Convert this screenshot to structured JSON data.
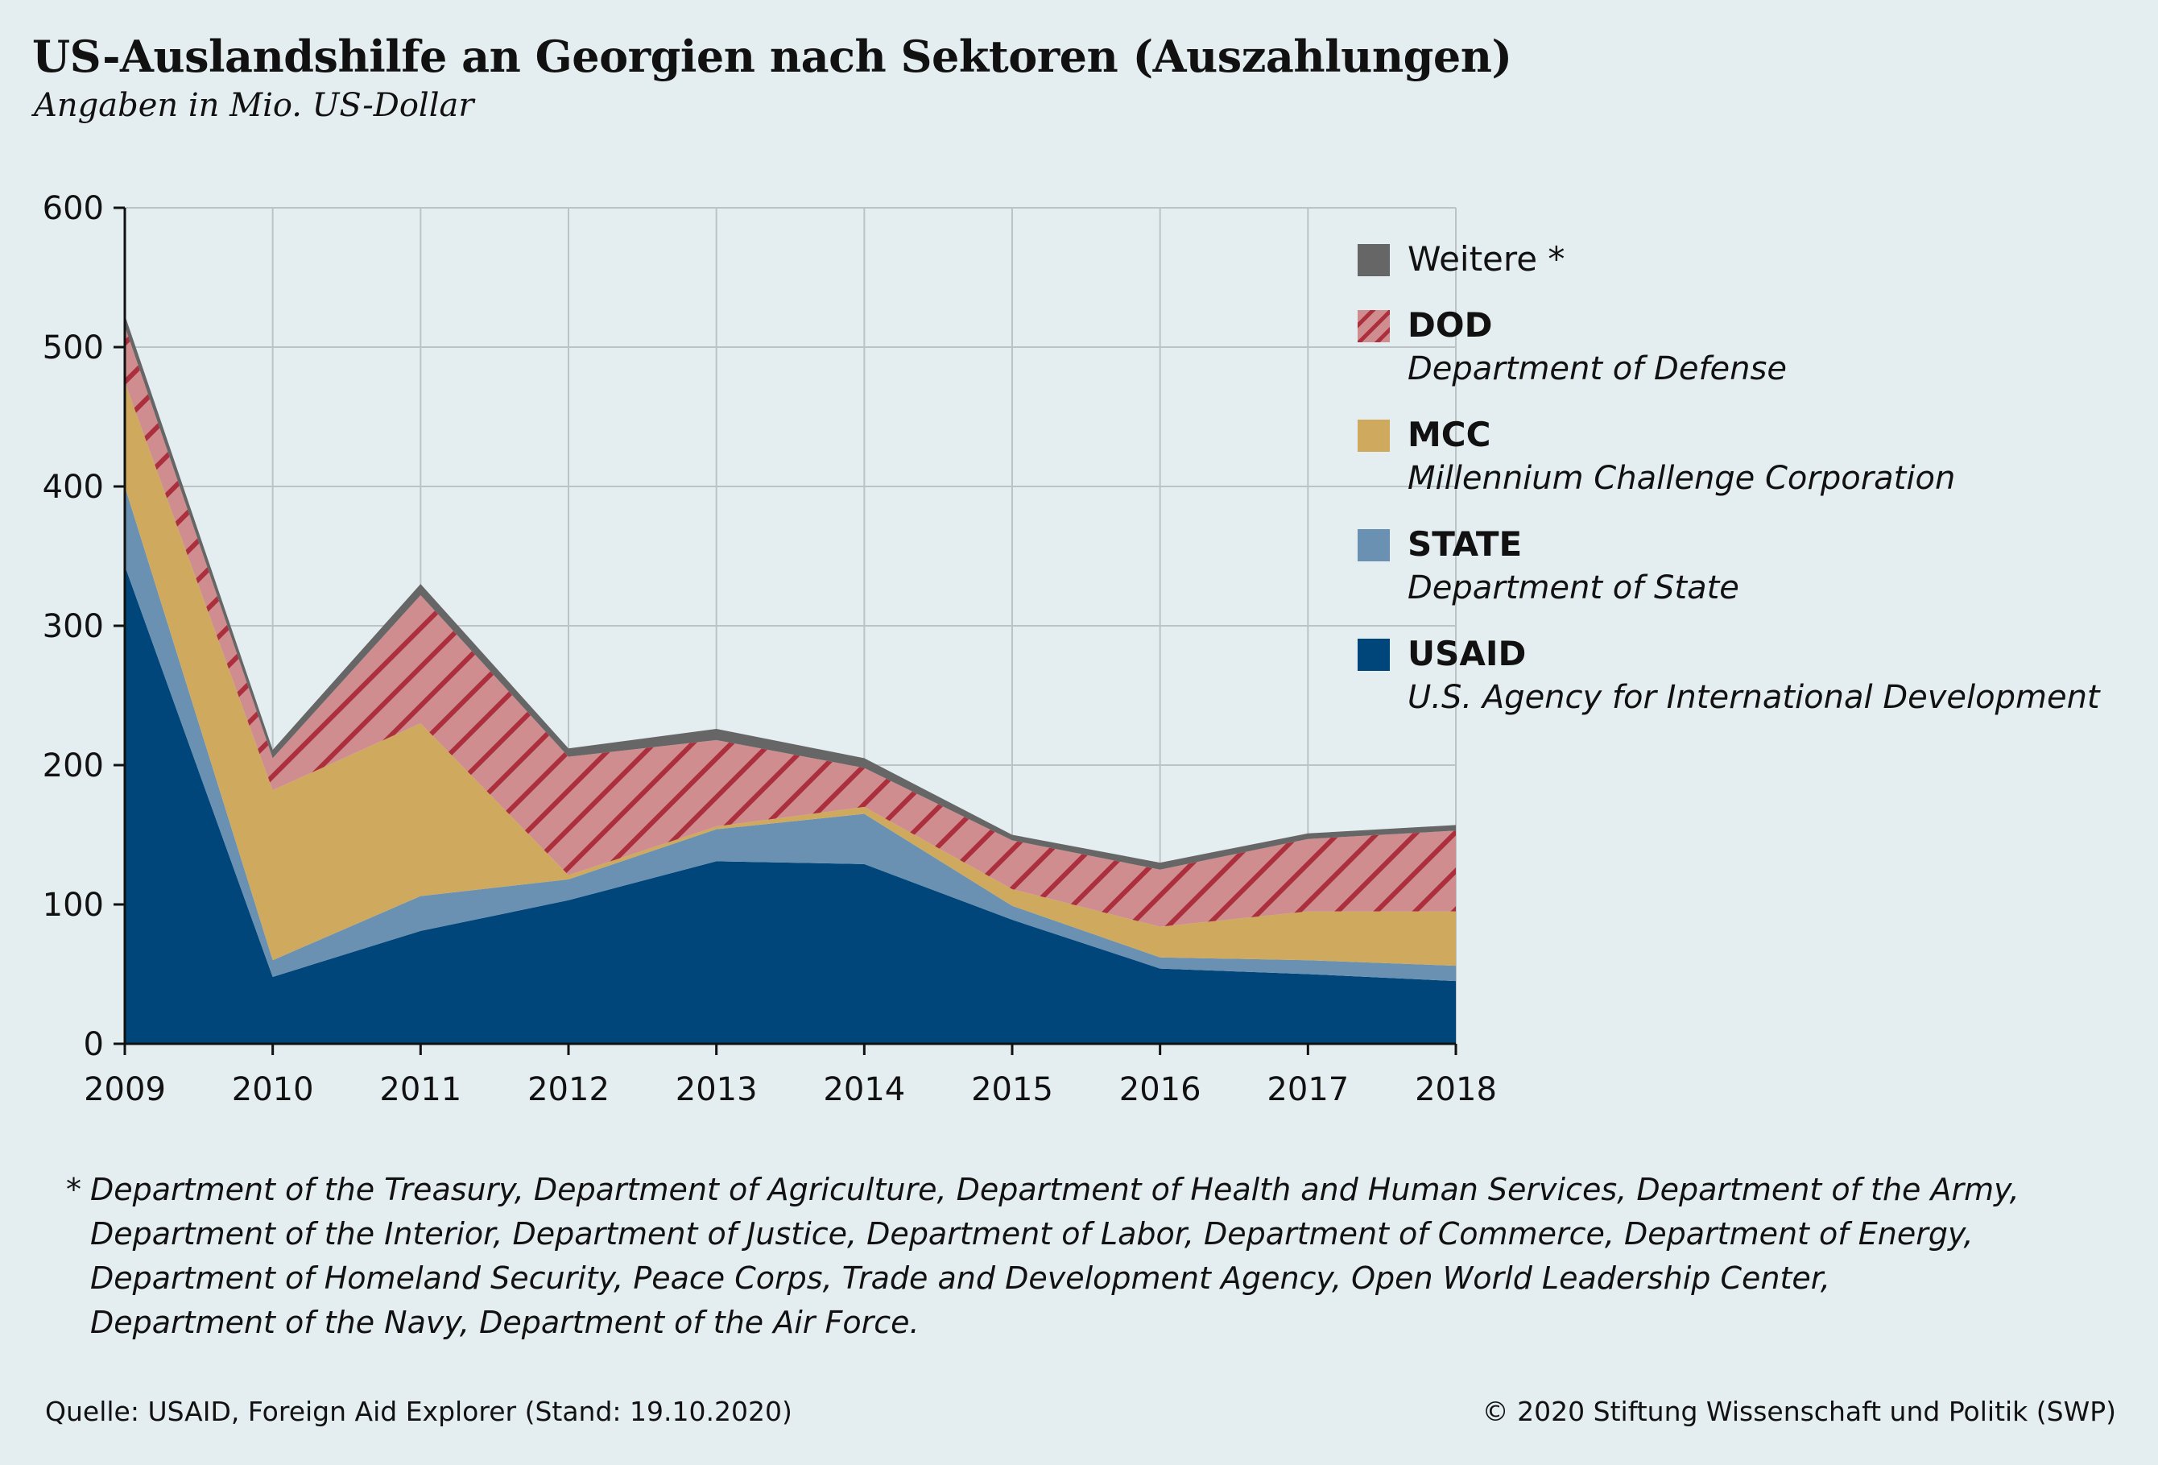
{
  "title": "US-Auslandshilfe an Georgien nach Sektoren (Auszahlungen)",
  "subtitle": "Angaben in Mio. US-Dollar",
  "colors": {
    "usaid": "#00467a",
    "state": "#6b91b2",
    "mcc": "#cfaa5e",
    "dod": "#d08d8f",
    "dod_hatch": "#ab2f3c",
    "weitere": "#666666",
    "grid": "#bcc3c6",
    "background": "#e4edf0"
  },
  "legend": [
    {
      "key": "weitere",
      "name": "Weitere",
      "suffix": " *",
      "bold": false,
      "desc": ""
    },
    {
      "key": "dod",
      "name": "DOD",
      "suffix": "",
      "bold": true,
      "desc": "Department of Defense"
    },
    {
      "key": "mcc",
      "name": "MCC",
      "suffix": "",
      "bold": true,
      "desc": "Millennium Challenge Corporation"
    },
    {
      "key": "state",
      "name": "STATE",
      "suffix": "",
      "bold": true,
      "desc": "Department of State"
    },
    {
      "key": "usaid",
      "name": "USAID",
      "suffix": "",
      "bold": true,
      "desc": "U.S. Agency for International Development"
    }
  ],
  "chart_data": {
    "type": "area",
    "stacked": true,
    "x": [
      2009,
      2010,
      2011,
      2012,
      2013,
      2014,
      2015,
      2016,
      2017,
      2018
    ],
    "ylim": [
      0,
      600
    ],
    "yticks": [
      0,
      100,
      200,
      300,
      400,
      500,
      600
    ],
    "grid": true,
    "legend_position": "right",
    "series": [
      {
        "key": "usaid",
        "name": "USAID",
        "values": [
          343,
          48,
          81,
          103,
          131,
          129,
          89,
          54,
          50,
          45
        ]
      },
      {
        "key": "state",
        "name": "STATE",
        "values": [
          57,
          12,
          25,
          15,
          23,
          36,
          10,
          8,
          10,
          11
        ]
      },
      {
        "key": "mcc",
        "name": "MCC",
        "values": [
          75,
          122,
          124,
          3,
          2,
          5,
          12,
          22,
          35,
          39
        ]
      },
      {
        "key": "dod",
        "name": "DOD",
        "values": [
          40,
          23,
          92,
          85,
          62,
          28,
          35,
          41,
          52,
          58
        ]
      },
      {
        "key": "weitere",
        "name": "Weitere",
        "values": [
          8,
          6,
          8,
          6,
          8,
          7,
          4,
          5,
          4,
          4
        ]
      }
    ]
  },
  "footnote": {
    "marker": "*",
    "lines": [
      "Department of the Treasury, Department of Agriculture, Department of Health and Human Services, Department of the Army,",
      "Department of the Interior, Department of Justice, Department of Labor, Department of Commerce, Department of Energy,",
      "Department of Homeland Security, Peace Corps, Trade and Development Agency, Open World Leadership Center,",
      "Department of the Navy, Department of the Air Force."
    ]
  },
  "source": "Quelle: USAID, Foreign Aid Explorer (Stand: 19.10.2020)",
  "copyright": "© 2020 Stiftung Wissenschaft und Politik (SWP)"
}
